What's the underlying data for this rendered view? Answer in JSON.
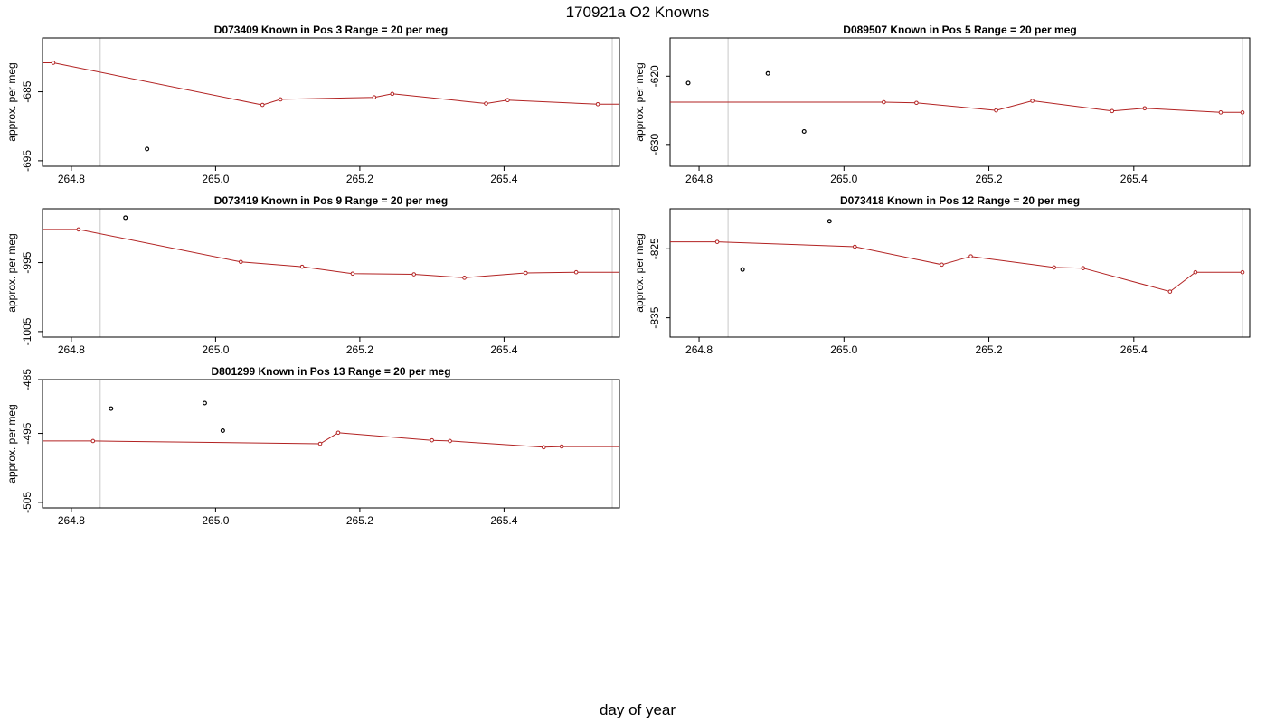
{
  "figure": {
    "title": "170921a   O2 Knowns",
    "xlabel": "day of year",
    "ylabel": "approx. per meg",
    "fit_color": "#b22222",
    "point_color": "#000000",
    "marker_color": "#c8c8c8"
  },
  "chart_data": [
    {
      "type": "scatter",
      "panel": "D073409",
      "title": "D073409    Known in Pos 3         Range = 20 per meg",
      "xlabel": "",
      "ylabel": "approx. per meg",
      "xlim": [
        264.76,
        265.56
      ],
      "ylim": [
        -695.8,
        -677.2
      ],
      "x_ticks": [
        264.8,
        265.0,
        265.2,
        265.4
      ],
      "x_tick_labels": [
        "264.8",
        "265.0",
        "265.2",
        "265.4"
      ],
      "y_ticks": [
        -685,
        -695
      ],
      "y_tick_labels": [
        "-685",
        "-695"
      ],
      "vlines": [
        264.84,
        265.55
      ],
      "series": [
        {
          "role": "fit",
          "x": [
            264.73,
            264.775,
            265.065,
            265.09,
            265.22,
            265.245,
            265.375,
            265.405,
            265.53,
            265.56
          ],
          "y": [
            -680.8,
            -680.8,
            -686.9,
            -686.1,
            -685.8,
            -685.3,
            -686.7,
            -686.2,
            -686.8,
            -686.8
          ]
        },
        {
          "role": "measured",
          "x": [
            264.905
          ],
          "y": [
            -693.3
          ]
        }
      ]
    },
    {
      "type": "scatter",
      "panel": "D089507",
      "title": "D089507    Known in Pos 5         Range = 20 per meg",
      "xlabel": "",
      "ylabel": "approx. per meg",
      "xlim": [
        264.76,
        265.56
      ],
      "ylim": [
        -633.2,
        -614.4
      ],
      "x_ticks": [
        264.8,
        265.0,
        265.2,
        265.4
      ],
      "x_tick_labels": [
        "264.8",
        "265.0",
        "265.2",
        "265.4"
      ],
      "y_ticks": [
        -620,
        -630
      ],
      "y_tick_labels": [
        "-620",
        "-630"
      ],
      "vlines": [
        264.84,
        265.55
      ],
      "series": [
        {
          "role": "fit",
          "x": [
            264.76,
            265.055,
            265.1,
            265.21,
            265.26,
            265.37,
            265.415,
            265.52,
            265.55
          ],
          "y": [
            -623.8,
            -623.8,
            -623.9,
            -625.0,
            -623.6,
            -625.1,
            -624.7,
            -625.3,
            -625.3
          ]
        },
        {
          "role": "measured",
          "x": [
            264.785,
            264.895,
            264.945
          ],
          "y": [
            -621.0,
            -619.6,
            -628.1
          ]
        }
      ]
    },
    {
      "type": "scatter",
      "panel": "D073419",
      "title": "D073419    Known in Pos 9         Range = 20 per meg",
      "xlabel": "",
      "ylabel": "approx. per meg",
      "xlim": [
        264.76,
        265.56
      ],
      "ylim": [
        -1005.8,
        -987.2
      ],
      "x_ticks": [
        264.8,
        265.0,
        265.2,
        265.4
      ],
      "x_tick_labels": [
        "264.8",
        "265.0",
        "265.2",
        "265.4"
      ],
      "y_ticks": [
        -995,
        -1005
      ],
      "y_tick_labels": [
        "-995",
        "-1005"
      ],
      "vlines": [
        264.84,
        265.55
      ],
      "series": [
        {
          "role": "fit",
          "x": [
            264.73,
            264.81,
            265.035,
            265.12,
            265.19,
            265.275,
            265.345,
            265.43,
            265.5,
            265.56
          ],
          "y": [
            -990.2,
            -990.2,
            -994.9,
            -995.6,
            -996.6,
            -996.7,
            -997.2,
            -996.5,
            -996.4,
            -996.4
          ]
        },
        {
          "role": "measured",
          "x": [
            264.875
          ],
          "y": [
            -988.5
          ]
        }
      ]
    },
    {
      "type": "scatter",
      "panel": "D073418",
      "title": "D073418    Known in Pos 12         Range = 20 per meg",
      "xlabel": "",
      "ylabel": "approx. per meg",
      "xlim": [
        264.76,
        265.56
      ],
      "ylim": [
        -837.8,
        -819.2
      ],
      "x_ticks": [
        264.8,
        265.0,
        265.2,
        265.4
      ],
      "x_tick_labels": [
        "264.8",
        "265.0",
        "265.2",
        "265.4"
      ],
      "y_ticks": [
        -825,
        -835
      ],
      "y_tick_labels": [
        "-825",
        "-835"
      ],
      "vlines": [
        264.84,
        265.55
      ],
      "series": [
        {
          "role": "fit",
          "x": [
            264.76,
            264.825,
            265.015,
            265.135,
            265.175,
            265.29,
            265.33,
            265.45,
            265.485,
            265.55
          ],
          "y": [
            -824.0,
            -824.0,
            -824.7,
            -827.3,
            -826.1,
            -827.7,
            -827.8,
            -831.2,
            -828.4,
            -828.4
          ]
        },
        {
          "role": "measured",
          "x": [
            264.86,
            264.98
          ],
          "y": [
            -828.0,
            -821.0
          ]
        }
      ]
    },
    {
      "type": "scatter",
      "panel": "D801299",
      "title": "D801299    Known in Pos 13         Range = 20 per meg",
      "xlabel": "",
      "ylabel": "approx. per meg",
      "xlim": [
        264.76,
        265.56
      ],
      "ylim": [
        -505.8,
        -487.2
      ],
      "x_ticks": [
        264.8,
        265.0,
        265.2,
        265.4
      ],
      "x_tick_labels": [
        "264.8",
        "265.0",
        "265.2",
        "265.4"
      ],
      "y_ticks": [
        -485,
        -495,
        -505
      ],
      "y_tick_labels": [
        "-485",
        "-495",
        "-505"
      ],
      "vlines": [
        264.84,
        265.55
      ],
      "series": [
        {
          "role": "fit",
          "x": [
            264.73,
            264.83,
            265.145,
            265.17,
            265.3,
            265.325,
            265.455,
            265.48,
            265.56
          ],
          "y": [
            -496.1,
            -496.1,
            -496.5,
            -494.9,
            -496.0,
            -496.1,
            -497.0,
            -496.9,
            -496.9
          ]
        },
        {
          "role": "measured",
          "x": [
            264.855,
            264.985,
            265.01
          ],
          "y": [
            -491.4,
            -490.6,
            -494.6
          ]
        }
      ]
    }
  ]
}
